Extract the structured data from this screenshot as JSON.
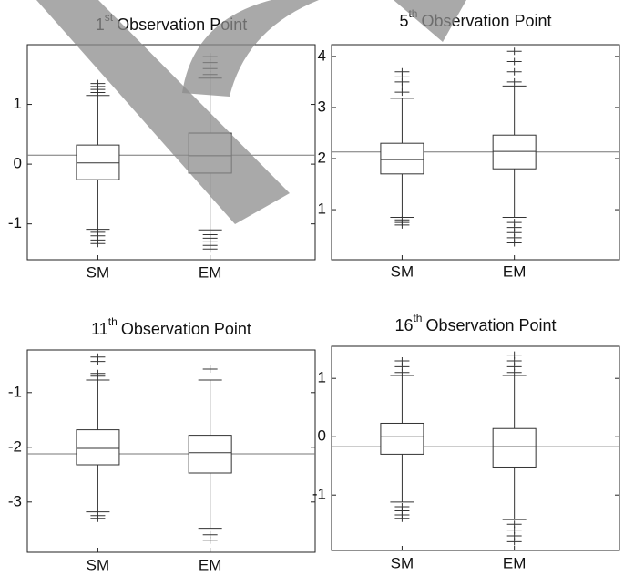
{
  "chart_data": [
    {
      "type": "box",
      "title": {
        "number": "1",
        "suffix": "st",
        "text": "Observation Point"
      },
      "categories": [
        "SM",
        "EM"
      ],
      "ylim": [
        -1.6,
        2.0
      ],
      "yticks": [
        -1,
        0,
        1
      ],
      "reference_line": 0.15,
      "boxes": [
        {
          "whisker_low": -1.09,
          "q1": -0.26,
          "median": 0.02,
          "q3": 0.32,
          "whisker_high": 1.15,
          "outliers": [
            -1.14,
            -1.2,
            -1.27,
            -1.33,
            1.2,
            1.25,
            1.3,
            1.35
          ]
        },
        {
          "whisker_low": -1.1,
          "q1": -0.15,
          "median": 0.14,
          "q3": 0.52,
          "whisker_high": 1.44,
          "outliers": [
            -1.18,
            -1.24,
            -1.3,
            -1.36,
            -1.42,
            1.5,
            1.6,
            1.7,
            1.8
          ]
        }
      ]
    },
    {
      "type": "box",
      "title": {
        "number": "5",
        "suffix": "th",
        "text": "Observation Point"
      },
      "categories": [
        "SM",
        "EM"
      ],
      "ylim": [
        0.02,
        4.23
      ],
      "yticks": [
        1,
        2,
        3,
        4
      ],
      "reference_line": 2.13,
      "boxes": [
        {
          "whisker_low": 0.85,
          "q1": 1.7,
          "median": 1.98,
          "q3": 2.3,
          "whisker_high": 3.18,
          "outliers": [
            0.8,
            0.75,
            0.7,
            3.3,
            3.4,
            3.5,
            3.6,
            3.7
          ]
        },
        {
          "whisker_low": 0.85,
          "q1": 1.8,
          "median": 2.14,
          "q3": 2.46,
          "whisker_high": 3.42,
          "outliers": [
            0.75,
            0.65,
            0.55,
            0.45,
            0.35,
            3.5,
            3.7,
            3.9,
            4.1
          ]
        }
      ]
    },
    {
      "type": "box",
      "title": {
        "number": "11",
        "suffix": "th",
        "text": "Observation Point"
      },
      "categories": [
        "SM",
        "EM"
      ],
      "ylim": [
        -3.92,
        -0.22
      ],
      "yticks": [
        -3,
        -2,
        -1
      ],
      "reference_line": -2.12,
      "boxes": [
        {
          "whisker_low": -3.18,
          "q1": -2.32,
          "median": -2.02,
          "q3": -1.68,
          "whisker_high": -0.77,
          "outliers": [
            -3.25,
            -3.3,
            -0.7,
            -0.65,
            -0.43,
            -0.35
          ]
        },
        {
          "whisker_low": -3.48,
          "q1": -2.47,
          "median": -2.1,
          "q3": -1.78,
          "whisker_high": -0.77,
          "outliers": [
            -3.6,
            -3.7,
            -0.57
          ]
        }
      ]
    },
    {
      "type": "box",
      "title": {
        "number": "16",
        "suffix": "th",
        "text": "Observation Point"
      },
      "categories": [
        "SM",
        "EM"
      ],
      "ylim": [
        -1.95,
        1.55
      ],
      "yticks": [
        -1,
        0,
        1
      ],
      "reference_line": -0.17,
      "boxes": [
        {
          "whisker_low": -1.12,
          "q1": -0.3,
          "median": 0.0,
          "q3": 0.23,
          "whisker_high": 1.05,
          "outliers": [
            -1.2,
            -1.27,
            -1.34,
            -1.4,
            1.1,
            1.2,
            1.3
          ]
        },
        {
          "whisker_low": -1.42,
          "q1": -0.52,
          "median": -0.17,
          "q3": 0.14,
          "whisker_high": 1.05,
          "outliers": [
            -1.5,
            -1.6,
            -1.7,
            -1.8,
            1.1,
            1.2,
            1.3,
            1.4
          ]
        }
      ]
    }
  ]
}
